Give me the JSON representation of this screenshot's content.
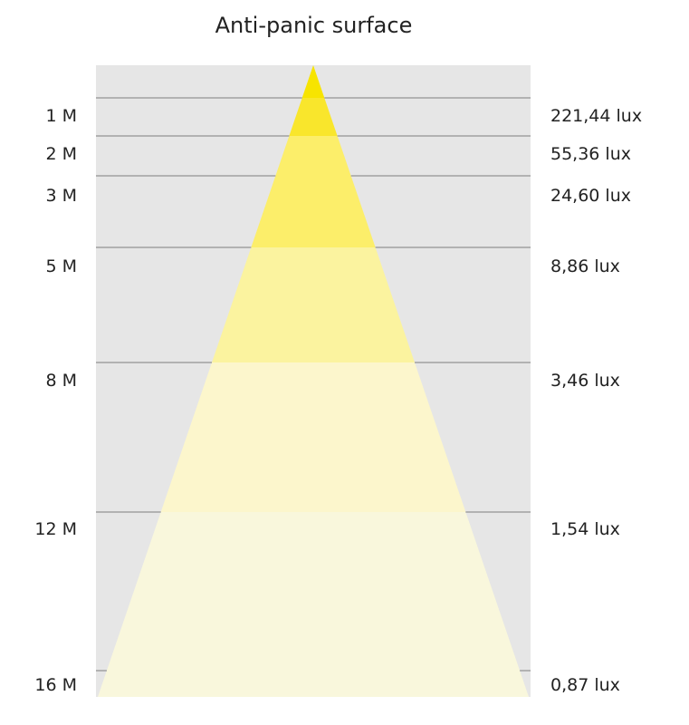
{
  "title": "Anti-panic surface",
  "colors": {
    "background": "#e6e6e6",
    "gridline": "#a0a0a0",
    "bands": [
      "#f7e400",
      "#f9e62c",
      "#fcee6a",
      "#fbf39f",
      "#fcf6cc",
      "#f9f7dc"
    ]
  },
  "levels": [
    {
      "distance": "1 M",
      "illuminance": "221,44 lux"
    },
    {
      "distance": "2 M",
      "illuminance": "55,36 lux"
    },
    {
      "distance": "3 M",
      "illuminance": "24,60 lux"
    },
    {
      "distance": "5 M",
      "illuminance": "8,86 lux"
    },
    {
      "distance": "8 M",
      "illuminance": "3,46 lux"
    },
    {
      "distance": "12 M",
      "illuminance": "1,54 lux"
    },
    {
      "distance": "16 M",
      "illuminance": "0,87 lux"
    }
  ]
}
